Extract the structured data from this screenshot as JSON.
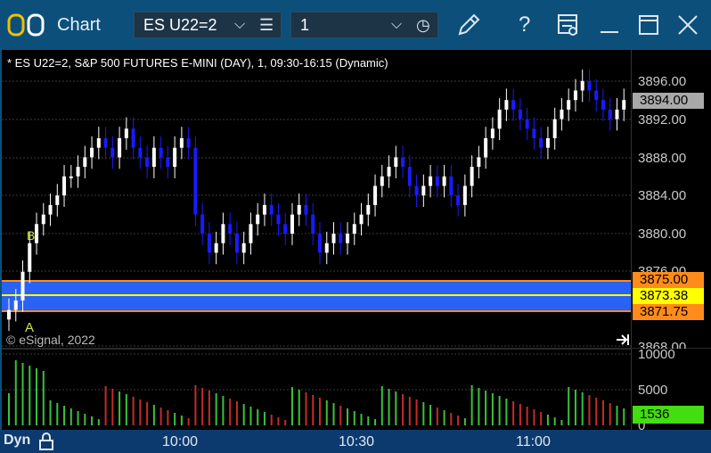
{
  "window": {
    "title": "Chart",
    "symbol": "ES U22=2",
    "interval": "1"
  },
  "chart": {
    "header": "* ES U22=2, S&P 500 FUTURES E-MINI (DAY), 1, 09:30-16:15 (Dynamic)",
    "copyright": "© eSignal, 2022",
    "marker_a": "A",
    "marker_b": "B"
  },
  "price_axis": {
    "ticks": [
      "3896.00",
      "3892.00",
      "3888.00",
      "3884.00",
      "3880.00",
      "3876.00",
      "3868.00"
    ],
    "flags": [
      {
        "label": "3894.00",
        "bg": "#a9a9a9",
        "color": "#000000"
      },
      {
        "label": "3875.00",
        "bg": "#ff8c1a",
        "color": "#000000"
      },
      {
        "label": "3873.38",
        "bg": "#ffff00",
        "color": "#000000"
      },
      {
        "label": "3871.75",
        "bg": "#ff8c1a",
        "color": "#000000"
      }
    ]
  },
  "volume_axis": {
    "ticks": [
      "10000",
      "5000",
      "0"
    ],
    "current": "1536"
  },
  "time_axis": {
    "mode": "Dyn",
    "labels": [
      "10:00",
      "10:30",
      "11:00"
    ]
  },
  "colors": {
    "up_candle": "#ffffff",
    "down_candle": "#1a1aff",
    "zone_fill": "#2a62f5",
    "zone_border": "#ff8c1a",
    "mid_line": "#ffff00",
    "volume_up": "#39c13a",
    "volume_down": "#c42b2b"
  }
}
